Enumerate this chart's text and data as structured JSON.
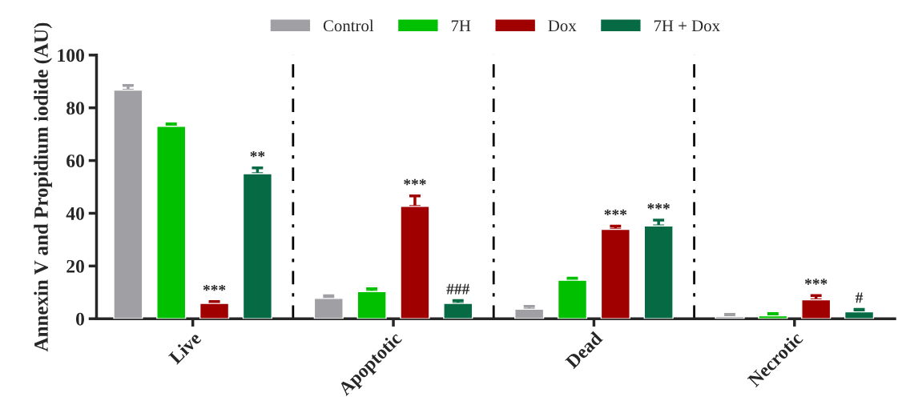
{
  "chart_data": {
    "type": "bar",
    "ylabel": "Annexin V and Propidium iodide (AU)",
    "categories": [
      "Live",
      "Apoptotic",
      "Dead",
      "Necrotic"
    ],
    "series": [
      {
        "name": "Control",
        "color": "#a0a0a4",
        "values": [
          86.7,
          7.7,
          3.6,
          0.8
        ],
        "errors": [
          [
            86.7,
            88.5
          ],
          [
            7.7,
            8.7
          ],
          [
            3.6,
            4.7
          ],
          [
            0.8,
            1.7
          ]
        ],
        "value_labels": [
          null,
          null,
          null,
          null
        ]
      },
      {
        "name": "7H",
        "color": "#00c000",
        "values": [
          73,
          10.3,
          14.6,
          1.1
        ],
        "errors": [
          [
            73,
            73.9
          ],
          [
            10.3,
            11.4
          ],
          [
            14.6,
            15.4
          ],
          [
            1.1,
            2.0
          ]
        ],
        "value_labels": [
          null,
          null,
          null,
          null
        ]
      },
      {
        "name": "Dox",
        "color": "#a00000",
        "values": [
          5.8,
          42.6,
          33.9,
          7.2
        ],
        "errors": [
          [
            5.8,
            6.5
          ],
          [
            42.6,
            46.6
          ],
          [
            33.9,
            35.1
          ],
          [
            7.2,
            8.8
          ]
        ],
        "value_labels": [
          "***",
          "***",
          "***",
          "***"
        ]
      },
      {
        "name": "7H + Dox",
        "color": "#066b45",
        "values": [
          55,
          5.8,
          35.2,
          2.6
        ],
        "errors": [
          [
            55,
            57.2
          ],
          [
            5.8,
            6.9
          ],
          [
            35.2,
            37.4
          ],
          [
            2.6,
            3.6
          ]
        ],
        "value_labels": [
          "**",
          "###",
          "***",
          "#"
        ]
      }
    ],
    "ylim": [
      0,
      100
    ],
    "yticks": [
      0,
      20,
      40,
      60,
      80,
      100
    ],
    "grid": false,
    "legend": "top"
  }
}
